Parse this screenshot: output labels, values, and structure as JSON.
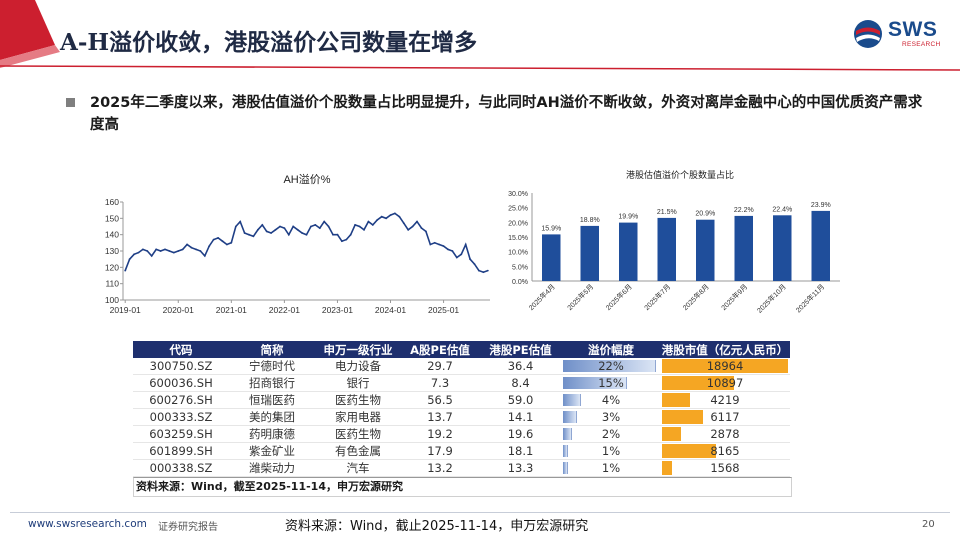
{
  "header": {
    "title": "A-H溢价收敛，港股溢价公司数量在增多",
    "logo_text": "SWS",
    "logo_sub": "RESEARCH"
  },
  "bullet": {
    "text": "2025年二季度以来，港股估值溢价个股数量占比明显提升，与此同时AH溢价不断收敛，外资对离岸金融中心的中国优质资产需求度高"
  },
  "colors": {
    "brand_red": "#cc1f2f",
    "brand_blue": "#1e2f6e",
    "bar_blue": "#1f4e9b",
    "mv_orange": "#f5a623"
  },
  "chart_data": [
    {
      "type": "line",
      "title": "AH溢价%",
      "ylim": [
        100,
        160
      ],
      "yticks": [
        100,
        110,
        120,
        130,
        140,
        150,
        160
      ],
      "xticks": [
        "2019-01",
        "2020-01",
        "2021-01",
        "2022-01",
        "2023-01",
        "2024-01",
        "2025-01"
      ],
      "x": [
        "2019-01",
        "2019-02",
        "2019-03",
        "2019-04",
        "2019-05",
        "2019-06",
        "2019-07",
        "2019-08",
        "2019-09",
        "2019-10",
        "2019-11",
        "2019-12",
        "2020-01",
        "2020-02",
        "2020-03",
        "2020-04",
        "2020-05",
        "2020-06",
        "2020-07",
        "2020-08",
        "2020-09",
        "2020-10",
        "2020-11",
        "2020-12",
        "2021-01",
        "2021-02",
        "2021-03",
        "2021-04",
        "2021-05",
        "2021-06",
        "2021-07",
        "2021-08",
        "2021-09",
        "2021-10",
        "2021-11",
        "2021-12",
        "2022-01",
        "2022-02",
        "2022-03",
        "2022-04",
        "2022-05",
        "2022-06",
        "2022-07",
        "2022-08",
        "2022-09",
        "2022-10",
        "2022-11",
        "2022-12",
        "2023-01",
        "2023-02",
        "2023-03",
        "2023-04",
        "2023-05",
        "2023-06",
        "2023-07",
        "2023-08",
        "2023-09",
        "2023-10",
        "2023-11",
        "2023-12",
        "2024-01",
        "2024-02",
        "2024-03",
        "2024-04",
        "2024-05",
        "2024-06",
        "2024-07",
        "2024-08",
        "2024-09",
        "2024-10",
        "2024-11",
        "2024-12",
        "2025-01",
        "2025-02",
        "2025-03",
        "2025-04",
        "2025-05",
        "2025-06",
        "2025-07",
        "2025-08",
        "2025-09",
        "2025-10",
        "2025-11"
      ],
      "values": [
        118,
        125,
        128,
        129,
        131,
        130,
        127,
        131,
        130,
        131,
        130,
        129,
        130,
        131,
        134,
        132,
        131,
        130,
        127,
        133,
        137,
        138,
        136,
        134,
        135,
        145,
        148,
        141,
        140,
        139,
        143,
        146,
        142,
        141,
        143,
        145,
        144,
        140,
        145,
        143,
        141,
        140,
        145,
        146,
        144,
        148,
        145,
        140,
        140,
        136,
        137,
        140,
        146,
        145,
        143,
        148,
        146,
        149,
        151,
        150,
        152,
        153,
        151,
        147,
        143,
        145,
        148,
        144,
        142,
        134,
        135,
        134,
        133,
        131,
        130,
        126,
        128,
        134,
        125,
        122,
        118,
        117,
        118
      ]
    },
    {
      "type": "bar",
      "title": "港股估值溢价个股数量占比",
      "categories": [
        "2025年4月",
        "2025年5月",
        "2025年6月",
        "2025年7月",
        "2025年8月",
        "2025年9月",
        "2025年10月",
        "2025年11月"
      ],
      "values": [
        15.9,
        18.8,
        19.9,
        21.5,
        20.9,
        22.2,
        22.4,
        23.9
      ],
      "data_labels": [
        "15.9%",
        "18.8%",
        "19.9%",
        "21.5%",
        "20.9%",
        "22.2%",
        "22.4%",
        "23.9%"
      ],
      "ylim": [
        0,
        30
      ],
      "yticks": [
        "0.0%",
        "5.0%",
        "10.0%",
        "15.0%",
        "20.0%",
        "25.0%",
        "30.0%"
      ]
    },
    {
      "type": "table",
      "columns": [
        "代码",
        "简称",
        "申万一级行业",
        "A股PE估值",
        "港股PE估值",
        "溢价幅度",
        "港股市值（亿元人民币）"
      ],
      "rows": [
        [
          "300750.SZ",
          "宁德时代",
          "电力设备",
          "29.7",
          "36.4",
          "22%",
          "18964"
        ],
        [
          "600036.SH",
          "招商银行",
          "银行",
          "7.3",
          "8.4",
          "15%",
          "10897"
        ],
        [
          "600276.SH",
          "恒瑞医药",
          "医药生物",
          "56.5",
          "59.0",
          "4%",
          "4219"
        ],
        [
          "000333.SZ",
          "美的集团",
          "家用电器",
          "13.7",
          "14.1",
          "3%",
          "6117"
        ],
        [
          "603259.SH",
          "药明康德",
          "医药生物",
          "19.2",
          "19.6",
          "2%",
          "2878"
        ],
        [
          "601899.SH",
          "紫金矿业",
          "有色金属",
          "17.9",
          "18.1",
          "1%",
          "8165"
        ],
        [
          "000338.SZ",
          "潍柴动力",
          "汽车",
          "13.2",
          "13.3",
          "1%",
          "1568"
        ]
      ],
      "premium_values": [
        22,
        15,
        4,
        3,
        2,
        1,
        1
      ],
      "market_values": [
        18964,
        10897,
        4219,
        6117,
        2878,
        8165,
        1568
      ]
    }
  ],
  "table_source": "资料来源：Wind，截至2025-11-14，申万宏源研究",
  "footer": {
    "url": "www.swsresearch.com",
    "type": "证券研究报告",
    "source": "资料来源：Wind，截止2025-11-14，申万宏源研究",
    "page": "20"
  }
}
